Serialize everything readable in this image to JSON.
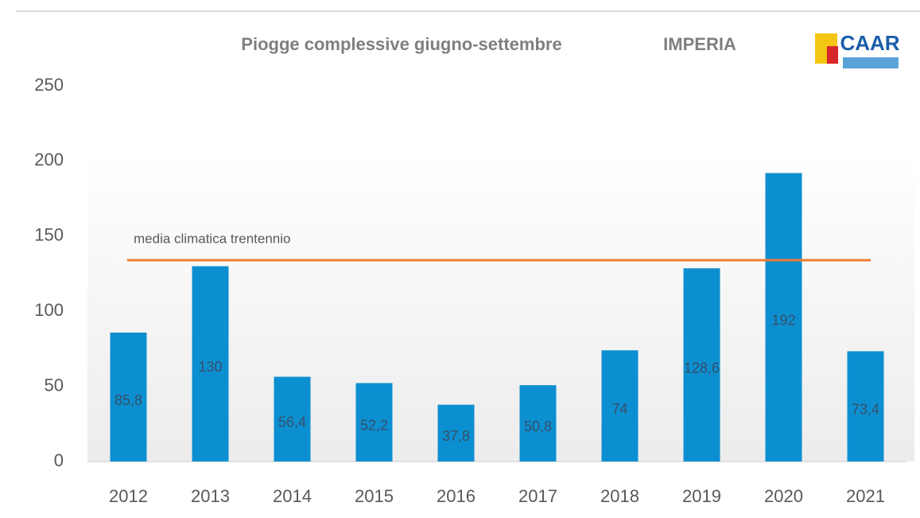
{
  "chart_data": {
    "type": "bar",
    "title": "Piogge complessive giugno-settembre",
    "subtitle": "IMPERIA",
    "logo": "CAAR",
    "categories": [
      "2012",
      "2013",
      "2014",
      "2015",
      "2016",
      "2017",
      "2018",
      "2019",
      "2020",
      "2021"
    ],
    "values": [
      85.8,
      130,
      56.4,
      52.2,
      37.8,
      50.8,
      74,
      128.6,
      192,
      73.4
    ],
    "value_labels": [
      "85,8",
      "130",
      "56,4",
      "52,2",
      "37,8",
      "50,8",
      "74",
      "128,6",
      "192",
      "73,4"
    ],
    "color": "#0c8fd0",
    "ylim": [
      0,
      250
    ],
    "yticks": [
      0,
      50,
      100,
      150,
      200,
      250
    ],
    "grid": false,
    "reference_line": {
      "value": 134,
      "label": "media climatica trentennio",
      "color": "#ed7d31"
    }
  }
}
